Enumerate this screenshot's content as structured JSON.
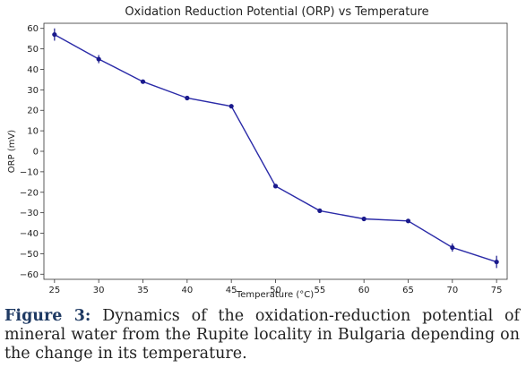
{
  "chart_data": {
    "type": "line",
    "title": "Oxidation Reduction Potential (ORP) vs Temperature",
    "xlabel": "Temperature (°C)",
    "ylabel": "ORP (mV)",
    "x": [
      25,
      30,
      35,
      40,
      45,
      50,
      55,
      60,
      65,
      70,
      75
    ],
    "y": [
      57,
      45,
      34,
      26,
      22,
      -17,
      -29,
      -33,
      -34,
      -47,
      -54
    ],
    "error": [
      3,
      2,
      1,
      1,
      1,
      1,
      1,
      1,
      1,
      2,
      3
    ],
    "xticks": [
      "25",
      "30",
      "35",
      "40",
      "45",
      "50",
      "55",
      "60",
      "65",
      "70",
      "75"
    ],
    "yticks": [
      "60",
      "50",
      "40",
      "30",
      "20",
      "10",
      "0",
      "−10",
      "−20",
      "−30",
      "−40",
      "−50",
      "−60"
    ],
    "xlim": [
      23.8,
      76.2
    ],
    "ylim": [
      -62.5,
      62.5
    ],
    "grid": false,
    "line_color": "#2b2ba8",
    "marker_color": "#1a1a8c"
  },
  "caption": {
    "label": "Figure 3:",
    "text": "Dynamics of the oxidation-reduction potential of mineral water from the Rupite locality in Bulgaria depending on the change in its temperature."
  }
}
